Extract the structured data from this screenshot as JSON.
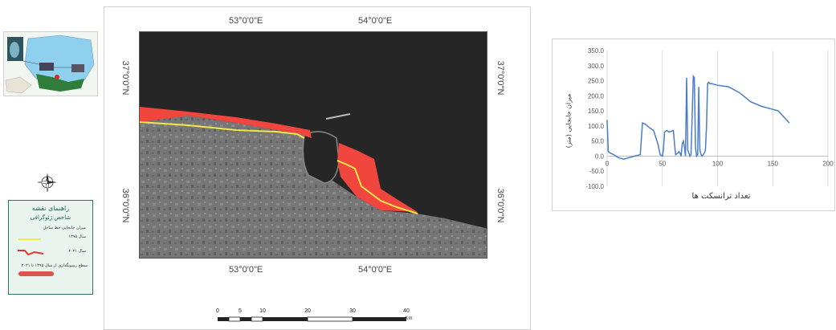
{
  "map": {
    "top_coords": [
      "53°0'0\"E",
      "54°0'0\"E"
    ],
    "bottom_coords": [
      "53°0'0\"E",
      "54°0'0\"E"
    ],
    "left_coords": [
      "37°0'0\"N",
      "36°0'0\"N"
    ],
    "right_coords": [
      "37°0'0\"N",
      "36°0'0\"N"
    ],
    "colors": {
      "sea": "#262626",
      "erosion_area": "#f0463e",
      "shoreline_1995": "#f5e64a",
      "land": "#6f6f6f"
    }
  },
  "legend": {
    "title": "راهنمای نقشه",
    "subtitle": "شاخص ژئوگرافی",
    "heading": "میزان جابجایی خط ساحل",
    "item_1995": "سال ۱۳۹۵",
    "item_2021": "سال ۲۰۲۱",
    "item_area": "سطح رسوبگذاری از سال ۱۳۹۵ تا ۲۰۲۱"
  },
  "scale_bar": {
    "ticks": [
      "0",
      "5",
      "10",
      "20",
      "30",
      "40"
    ],
    "unit": "Km"
  },
  "chart_data": {
    "type": "line",
    "ylabel": "میزان جابجایی (متر)",
    "xlabel": "تعداد ترانسکت ها",
    "xlim": [
      0,
      200
    ],
    "ylim": [
      -100,
      350
    ],
    "x_ticks": [
      "0",
      "50",
      "100",
      "150",
      "200"
    ],
    "y_ticks": [
      "350.0",
      "300.0",
      "250.0",
      "200.0",
      "150.0",
      "100.0",
      "50.0",
      "0.0",
      "-50.0",
      "-100.0"
    ],
    "color": "#4a7cc7",
    "series": [
      {
        "x": [
          0,
          1,
          3,
          6,
          10,
          15,
          20,
          25,
          30,
          32,
          35,
          38,
          42,
          46,
          48,
          50,
          51,
          52,
          54,
          56,
          58,
          60,
          61,
          62,
          64,
          65,
          66,
          67,
          68,
          69,
          70,
          71,
          72,
          73,
          74,
          75,
          76,
          78,
          79,
          80,
          81,
          82,
          83,
          84,
          85,
          86,
          87,
          88,
          89,
          90,
          91,
          92,
          93,
          95,
          100,
          110,
          120,
          130,
          140,
          150,
          155,
          160,
          165
        ],
        "y": [
          120,
          15,
          10,
          5,
          -5,
          -10,
          -5,
          0,
          5,
          110,
          105,
          95,
          85,
          40,
          5,
          0,
          20,
          80,
          85,
          80,
          82,
          85,
          40,
          5,
          10,
          15,
          10,
          0,
          40,
          50,
          30,
          0,
          260,
          20,
          10,
          0,
          5,
          265,
          260,
          30,
          0,
          5,
          230,
          20,
          5,
          0,
          5,
          10,
          20,
          100,
          240,
          245,
          240,
          240,
          235,
          230,
          210,
          180,
          165,
          155,
          150,
          130,
          110
        ]
      }
    ]
  }
}
